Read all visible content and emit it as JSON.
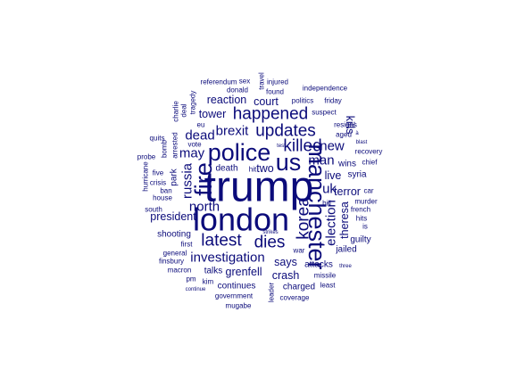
{
  "wordcloud": {
    "color": "#0b0b7a",
    "words": [
      {
        "text": "trump",
        "tier": 1,
        "rot": 0
      },
      {
        "text": "london",
        "tier": 2,
        "rot": 0
      },
      {
        "text": "police",
        "tier": 3,
        "rot": 0
      },
      {
        "text": "fire",
        "tier": 3,
        "rot": -90
      },
      {
        "text": "us",
        "tier": 3,
        "rot": 0
      },
      {
        "text": "manchester",
        "tier": 3,
        "rot": 90
      },
      {
        "text": "latest",
        "tier": 4,
        "rot": 0
      },
      {
        "text": "updates",
        "tier": 4,
        "rot": 0
      },
      {
        "text": "happened",
        "tier": 4,
        "rot": 0
      },
      {
        "text": "dies",
        "tier": 4,
        "rot": 0
      },
      {
        "text": "killed",
        "tier": 4,
        "rot": 0
      },
      {
        "text": "korea",
        "tier": 4,
        "rot": -90
      },
      {
        "text": "investigation",
        "tier": 5,
        "rot": 0
      },
      {
        "text": "brexit",
        "tier": 5,
        "rot": 0
      },
      {
        "text": "may",
        "tier": 5,
        "rot": 0
      },
      {
        "text": "russia",
        "tier": 5,
        "rot": -90
      },
      {
        "text": "uk",
        "tier": 5,
        "rot": 0
      },
      {
        "text": "election",
        "tier": 5,
        "rot": -90
      },
      {
        "text": "man",
        "tier": 5,
        "rot": 0
      },
      {
        "text": "new",
        "tier": 5,
        "rot": 0
      },
      {
        "text": "dead",
        "tier": 5,
        "rot": 0
      },
      {
        "text": "north",
        "tier": 5,
        "rot": 0
      },
      {
        "text": "tower",
        "tier": 6,
        "rot": 0
      },
      {
        "text": "court",
        "tier": 6,
        "rot": 0
      },
      {
        "text": "reaction",
        "tier": 6,
        "rot": 0
      },
      {
        "text": "grenfell",
        "tier": 6,
        "rot": 0
      },
      {
        "text": "says",
        "tier": 6,
        "rot": 0
      },
      {
        "text": "crash",
        "tier": 6,
        "rot": 0
      },
      {
        "text": "live",
        "tier": 6,
        "rot": 0
      },
      {
        "text": "theresa",
        "tier": 6,
        "rot": -90
      },
      {
        "text": "kills",
        "tier": 6,
        "rot": 90
      },
      {
        "text": "president",
        "tier": 6,
        "rot": 0
      },
      {
        "text": "two",
        "tier": 6,
        "rot": 0
      },
      {
        "text": "terror",
        "tier": 6,
        "rot": 0
      },
      {
        "text": "death",
        "tier": 7,
        "rot": 0
      },
      {
        "text": "charged",
        "tier": 7,
        "rot": 0
      },
      {
        "text": "attacks",
        "tier": 7,
        "rot": 0
      },
      {
        "text": "jailed",
        "tier": 7,
        "rot": 0
      },
      {
        "text": "shooting",
        "tier": 7,
        "rot": 0
      },
      {
        "text": "park",
        "tier": 7,
        "rot": -90
      },
      {
        "text": "wins",
        "tier": 7,
        "rot": 0
      },
      {
        "text": "syria",
        "tier": 7,
        "rot": 0
      },
      {
        "text": "guilty",
        "tier": 7,
        "rot": 0
      },
      {
        "text": "continues",
        "tier": 7,
        "rot": 0
      },
      {
        "text": "talks",
        "tier": 7,
        "rot": 0
      },
      {
        "text": "independence",
        "tier": 8,
        "rot": 0
      },
      {
        "text": "suspect",
        "tier": 8,
        "rot": 0
      },
      {
        "text": "politics",
        "tier": 8,
        "rot": 0
      },
      {
        "text": "found",
        "tier": 8,
        "rot": 0
      },
      {
        "text": "injured",
        "tier": 8,
        "rot": 0
      },
      {
        "text": "donald",
        "tier": 8,
        "rot": 0
      },
      {
        "text": "referendum",
        "tier": 8,
        "rot": 0
      },
      {
        "text": "sex",
        "tier": 8,
        "rot": 0
      },
      {
        "text": "travel",
        "tier": 8,
        "rot": -90
      },
      {
        "text": "eu",
        "tier": 8,
        "rot": 0
      },
      {
        "text": "vote",
        "tier": 8,
        "rot": 0
      },
      {
        "text": "arrested",
        "tier": 8,
        "rot": -90
      },
      {
        "text": "bomb",
        "tier": 8,
        "rot": -90
      },
      {
        "text": "deal",
        "tier": 8,
        "rot": -90
      },
      {
        "text": "tragedy",
        "tier": 8,
        "rot": -90
      },
      {
        "text": "charlie",
        "tier": 8,
        "rot": -90
      },
      {
        "text": "quits",
        "tier": 8,
        "rot": 0
      },
      {
        "text": "probe",
        "tier": 8,
        "rot": 0
      },
      {
        "text": "five",
        "tier": 8,
        "rot": 0
      },
      {
        "text": "crisis",
        "tier": 8,
        "rot": 0
      },
      {
        "text": "ban",
        "tier": 8,
        "rot": 0
      },
      {
        "text": "house",
        "tier": 8,
        "rot": 0
      },
      {
        "text": "hurricane",
        "tier": 8,
        "rot": -90
      },
      {
        "text": "south",
        "tier": 8,
        "rot": 0
      },
      {
        "text": "first",
        "tier": 8,
        "rot": 0
      },
      {
        "text": "general",
        "tier": 8,
        "rot": 0
      },
      {
        "text": "finsbury",
        "tier": 8,
        "rot": 0
      },
      {
        "text": "macron",
        "tier": 8,
        "rot": 0
      },
      {
        "text": "pm",
        "tier": 8,
        "rot": 0
      },
      {
        "text": "kim",
        "tier": 8,
        "rot": 0
      },
      {
        "text": "government",
        "tier": 8,
        "rot": 0
      },
      {
        "text": "mugabe",
        "tier": 8,
        "rot": 0
      },
      {
        "text": "coverage",
        "tier": 8,
        "rot": 0
      },
      {
        "text": "leader",
        "tier": 8,
        "rot": -90
      },
      {
        "text": "least",
        "tier": 8,
        "rot": 0
      },
      {
        "text": "missile",
        "tier": 8,
        "rot": 0
      },
      {
        "text": "war",
        "tier": 8,
        "rot": 0
      },
      {
        "text": "hits",
        "tier": 8,
        "rot": 0
      },
      {
        "text": "is",
        "tier": 8,
        "rot": 0
      },
      {
        "text": "french",
        "tier": 8,
        "rot": 0
      },
      {
        "text": "murder",
        "tier": 8,
        "rot": 0
      },
      {
        "text": "car",
        "tier": 8,
        "rot": 0
      },
      {
        "text": "bill",
        "tier": 8,
        "rot": 0
      },
      {
        "text": "chief",
        "tier": 8,
        "rot": 0
      },
      {
        "text": "recovery",
        "tier": 8,
        "rot": 0
      },
      {
        "text": "aged",
        "tier": 8,
        "rot": 0
      },
      {
        "text": "resigns",
        "tier": 8,
        "rot": 0
      },
      {
        "text": "friday",
        "tier": 8,
        "rot": 0
      },
      {
        "text": "hit",
        "tier": 8,
        "rot": 0
      },
      {
        "text": "blast",
        "tier": 9,
        "rot": 0
      },
      {
        "text": "à",
        "tier": 9,
        "rot": 0
      },
      {
        "text": "test",
        "tier": 9,
        "rot": 0
      },
      {
        "text": "strikes",
        "tier": 9,
        "rot": 0
      },
      {
        "text": "three",
        "tier": 9,
        "rot": 0
      },
      {
        "text": "continue",
        "tier": 9,
        "rot": 0
      }
    ]
  }
}
